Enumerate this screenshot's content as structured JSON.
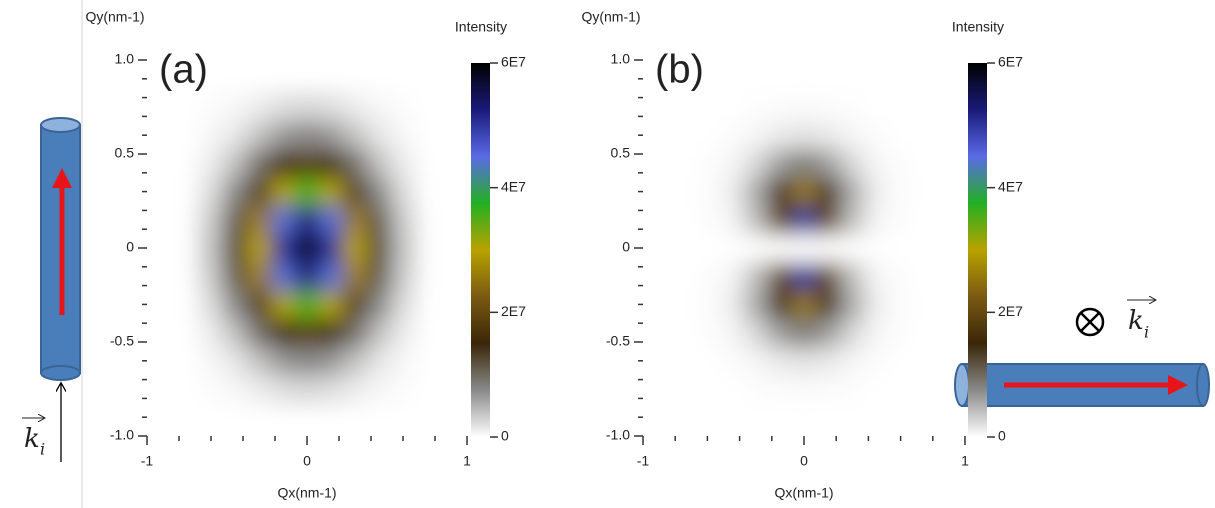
{
  "chart_data": [
    {
      "type": "heatmap",
      "panel_label": "(a)",
      "x_label": "Qx(nm-1)",
      "y_label": "Qy(nm-1)",
      "colorbar_label": "Intensity",
      "xlim": [
        -1,
        1
      ],
      "ylim": [
        -1,
        1
      ],
      "xticks": [
        -1,
        0,
        1
      ],
      "yticks": [
        {
          "value": -1,
          "label": "-1.0"
        },
        {
          "value": -0.5,
          "label": "-0.5"
        },
        0,
        {
          "value": 0.5,
          "label": "0.5"
        },
        {
          "value": 1,
          "label": "1.0"
        }
      ],
      "colorbar_lim": [
        0,
        60000000.0
      ],
      "colorbar_ticks": [
        0,
        {
          "value": 20000000.0,
          "label": "2E7"
        },
        {
          "value": 40000000.0,
          "label": "4E7"
        },
        {
          "value": 60000000.0,
          "label": "6E7"
        }
      ],
      "colormap": [
        "#ffffff",
        "#8a8a8a",
        "#3a2608",
        "#7a5a12",
        "#b9a200",
        "#22b022",
        "#5a6ae6",
        "#1a1a7a",
        "#000000"
      ],
      "x": [
        -0.6,
        -0.45,
        -0.3,
        -0.15,
        0,
        0.15,
        0.3,
        0.45,
        0.6
      ],
      "y": [
        -0.75,
        -0.6,
        -0.45,
        -0.3,
        -0.15,
        0,
        0.15,
        0.3,
        0.45,
        0.6,
        0.75
      ],
      "z": [
        [
          200000.0,
          500000.0,
          1200000.0,
          2100000.0,
          2500000.0,
          2100000.0,
          1200000.0,
          500000.0,
          200000.0
        ],
        [
          500000.0,
          1600000.0,
          3900000.0,
          6600000.0,
          7800000.0,
          6600000.0,
          3900000.0,
          1600000.0,
          500000.0
        ],
        [
          1200000.0,
          4000000.0,
          9500000.0,
          16000000.0,
          19000000.0,
          16000000.0,
          9500000.0,
          4000000.0,
          1200000.0
        ],
        [
          2200000.0,
          7600000.0,
          18000000.0,
          30300000.0,
          36000000.0,
          30300000.0,
          18000000.0,
          7600000.0,
          2200000.0
        ],
        [
          3300000.0,
          11100000.0,
          26400000.0,
          44400000.0,
          52800000.0,
          44400000.0,
          26400000.0,
          11100000.0,
          3300000.0
        ],
        [
          3700000.0,
          12600000.0,
          30000000.0,
          50500000.0,
          60000000.0,
          50500000.0,
          30000000.0,
          12600000.0,
          3700000.0
        ],
        [
          3300000.0,
          11100000.0,
          26400000.0,
          44400000.0,
          52800000.0,
          44400000.0,
          26400000.0,
          11100000.0,
          3300000.0
        ],
        [
          2200000.0,
          7600000.0,
          18000000.0,
          30300000.0,
          36000000.0,
          30300000.0,
          18000000.0,
          7600000.0,
          2200000.0
        ],
        [
          1200000.0,
          4000000.0,
          9500000.0,
          16000000.0,
          19000000.0,
          16000000.0,
          9500000.0,
          4000000.0,
          1200000.0
        ],
        [
          500000.0,
          1600000.0,
          3900000.0,
          6600000.0,
          7800000.0,
          6600000.0,
          3900000.0,
          1600000.0,
          500000.0
        ],
        [
          200000.0,
          500000.0,
          1200000.0,
          2100000.0,
          2500000.0,
          2100000.0,
          1200000.0,
          500000.0,
          200000.0
        ]
      ]
    },
    {
      "type": "heatmap",
      "panel_label": "(b)",
      "x_label": "Qx(nm-1)",
      "y_label": "Qy(nm-1)",
      "colorbar_label": "Intensity",
      "xlim": [
        -1,
        1
      ],
      "ylim": [
        -1,
        1
      ],
      "xticks": [
        -1,
        0,
        1
      ],
      "yticks": [
        {
          "value": -1,
          "label": "-1.0"
        },
        {
          "value": -0.5,
          "label": "-0.5"
        },
        0,
        {
          "value": 0.5,
          "label": "0.5"
        },
        {
          "value": 1,
          "label": "1.0"
        }
      ],
      "colorbar_lim": [
        0,
        60000000.0
      ],
      "colorbar_ticks": [
        0,
        {
          "value": 20000000.0,
          "label": "2E7"
        },
        {
          "value": 40000000.0,
          "label": "4E7"
        },
        {
          "value": 60000000.0,
          "label": "6E7"
        }
      ],
      "colormap": [
        "#ffffff",
        "#8a8a8a",
        "#3a2608",
        "#7a5a12",
        "#b9a200",
        "#22b022",
        "#5a6ae6",
        "#1a1a7a",
        "#000000"
      ],
      "x": [
        -0.6,
        -0.45,
        -0.3,
        -0.15,
        0,
        0.15,
        0.3,
        0.45,
        0.6
      ],
      "y": [
        -0.75,
        -0.6,
        -0.45,
        -0.3,
        -0.15,
        0,
        0.15,
        0.3,
        0.45,
        0.6,
        0.75
      ],
      "z": [
        [
          0,
          0,
          100000.0,
          200000.0,
          300000.0,
          200000.0,
          100000.0,
          0,
          0
        ],
        [
          0,
          200000.0,
          600000.0,
          1400000.0,
          1800000.0,
          1400000.0,
          600000.0,
          200000.0,
          0
        ],
        [
          100000.0,
          600000.0,
          2500000.0,
          6200000.0,
          8600000.0,
          6200000.0,
          2500000.0,
          600000.0,
          100000.0
        ],
        [
          200000.0,
          1100000.0,
          5300000.0,
          16500000.0,
          25700000.0,
          16500000.0,
          5300000.0,
          1100000.0,
          200000.0
        ],
        [
          100000.0,
          700000.0,
          4100000.0,
          20000000.0,
          49800000.0,
          20000000.0,
          4100000.0,
          700000.0,
          100000.0
        ],
        [
          0,
          0,
          0,
          0,
          0,
          0,
          0,
          0,
          0
        ],
        [
          100000.0,
          700000.0,
          4100000.0,
          20000000.0,
          49800000.0,
          20000000.0,
          4100000.0,
          700000.0,
          100000.0
        ],
        [
          200000.0,
          1100000.0,
          5300000.0,
          16500000.0,
          25700000.0,
          16500000.0,
          5300000.0,
          1100000.0,
          200000.0
        ],
        [
          100000.0,
          600000.0,
          2500000.0,
          6200000.0,
          8600000.0,
          6200000.0,
          2500000.0,
          600000.0,
          100000.0
        ],
        [
          0,
          200000.0,
          600000.0,
          1400000.0,
          1800000.0,
          1400000.0,
          600000.0,
          200000.0,
          0
        ],
        [
          0,
          0,
          100000.0,
          200000.0,
          300000.0,
          200000.0,
          100000.0,
          0,
          0
        ]
      ]
    }
  ],
  "annotations": {
    "wave_vector_left": {
      "symbol": "k",
      "subscript": "i"
    },
    "wave_vector_right": {
      "symbol": "k",
      "subscript": "i"
    }
  }
}
